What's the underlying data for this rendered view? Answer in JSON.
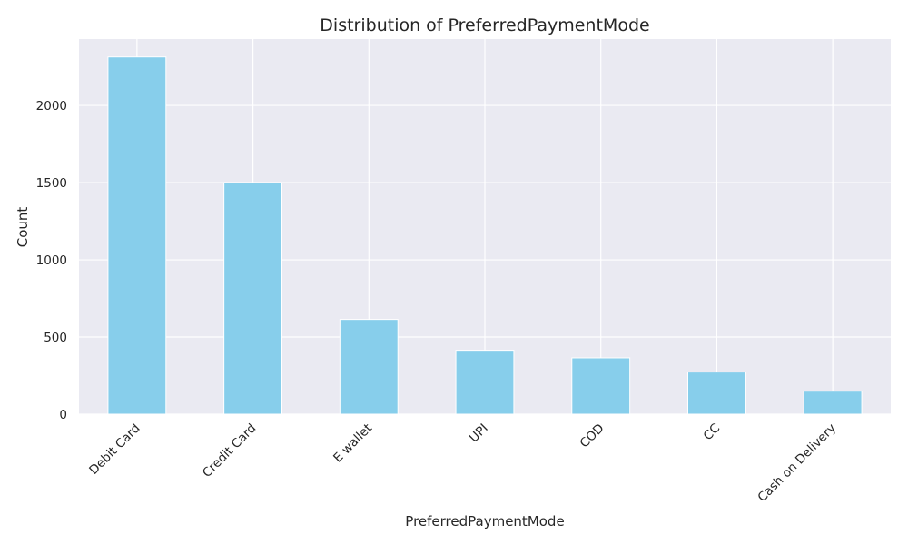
{
  "chart_data": {
    "type": "bar",
    "title": "Distribution of PreferredPaymentMode",
    "xlabel": "PreferredPaymentMode",
    "ylabel": "Count",
    "categories": [
      "Debit Card",
      "Credit Card",
      "E wallet",
      "UPI",
      "COD",
      "CC",
      "Cash on Delivery"
    ],
    "values": [
      2314,
      1501,
      614,
      414,
      365,
      273,
      149
    ],
    "ylim": [
      0,
      2430
    ],
    "yticks": [
      0,
      500,
      1000,
      1500,
      2000
    ],
    "grid": true,
    "colors": {
      "bar": "#87CEEB",
      "plot_background": "#EAEAF2",
      "grid": "#FFFFFF",
      "text": "#262626"
    }
  }
}
